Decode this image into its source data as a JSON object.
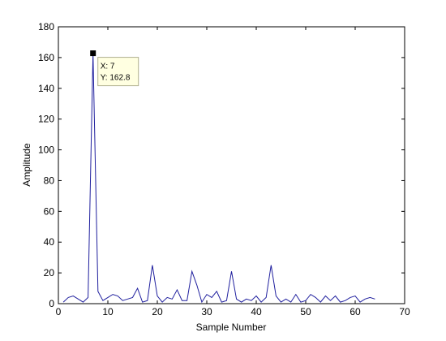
{
  "chart_data": {
    "type": "line",
    "title": "",
    "xlabel": "Sample Number",
    "ylabel": "Amplitude",
    "xlim": [
      0,
      70
    ],
    "ylim": [
      0,
      180
    ],
    "x_ticks": [
      0,
      10,
      20,
      30,
      40,
      50,
      60,
      70
    ],
    "y_ticks": [
      0,
      20,
      40,
      60,
      80,
      100,
      120,
      140,
      160,
      180
    ],
    "grid": false,
    "line_color": "#1f1f9e",
    "series": [
      {
        "x": [
          1,
          2,
          3,
          4,
          5,
          6,
          7,
          8,
          9,
          10,
          11,
          12,
          13,
          14,
          15,
          16,
          17,
          18,
          19,
          20,
          21,
          22,
          23,
          24,
          25,
          26,
          27,
          28,
          29,
          30,
          31,
          32,
          33,
          34,
          35,
          36,
          37,
          38,
          39,
          40,
          41,
          42,
          43,
          44,
          45,
          46,
          47,
          48,
          49,
          50,
          51,
          52,
          53,
          54,
          55,
          56,
          57,
          58,
          59,
          60,
          61,
          62,
          63,
          64
        ],
        "values": [
          1,
          4,
          5,
          3,
          1,
          4,
          162.8,
          8,
          2,
          4,
          6,
          5,
          2,
          3,
          4,
          10,
          1,
          2,
          25,
          5,
          1,
          4,
          3,
          9,
          2,
          2,
          21,
          12,
          1,
          6,
          4,
          8,
          1,
          2,
          21,
          3,
          1,
          3,
          2,
          5,
          1,
          4,
          25,
          5,
          1,
          3,
          1,
          6,
          1,
          2,
          6,
          4,
          1,
          5,
          2,
          5,
          1,
          2,
          4,
          5,
          1,
          3,
          4,
          3
        ]
      }
    ],
    "datatip": {
      "x_text": "X: 7",
      "y_text": "Y: 162.8",
      "x": 7,
      "y": 162.8
    }
  }
}
